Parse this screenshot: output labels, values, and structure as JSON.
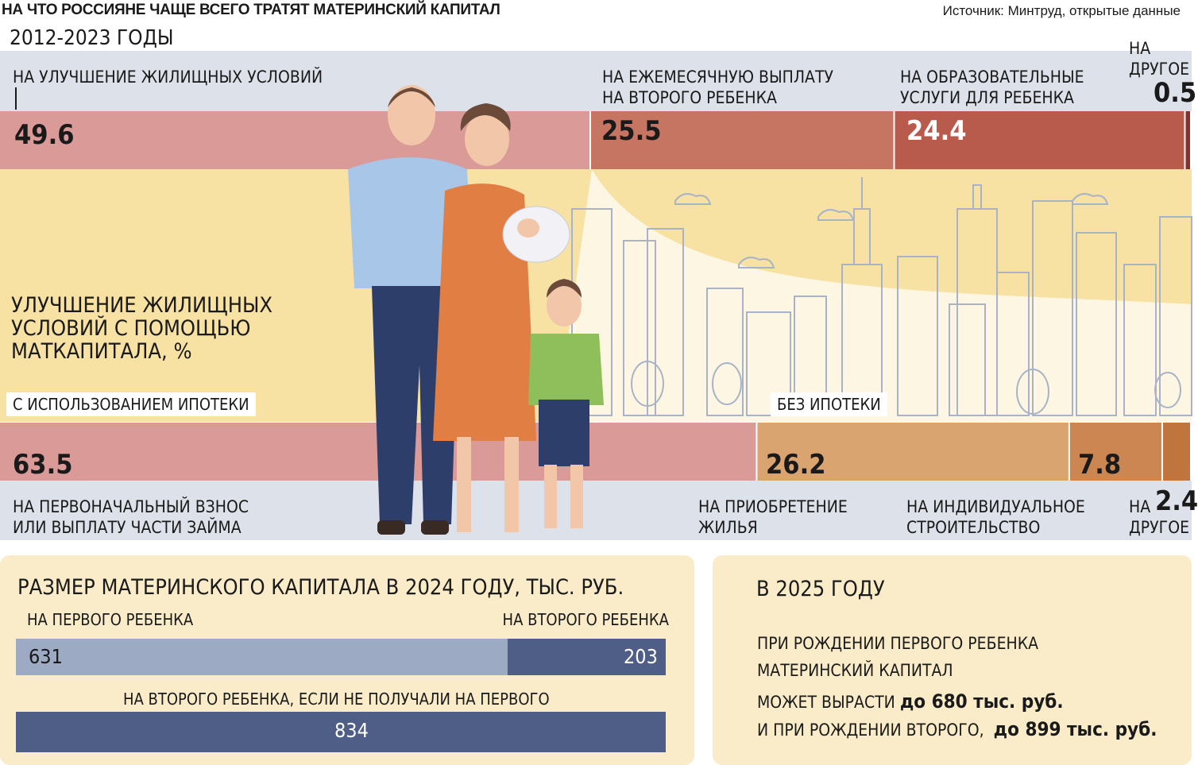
{
  "header": {
    "title": "НА ЧТО РОССИЯНЕ  ЧАЩЕ ВСЕГО ТРАТЯТ МАТЕРИНСКИЙ КАПИТАЛ",
    "source": "Источник: Минтруд, открытые данные",
    "period": "2012-2023 ГОДЫ"
  },
  "chart_data": [
    {
      "type": "bar",
      "orientation": "horizontal-stacked",
      "unit": "%",
      "categories": [
        "НА УЛУЧШЕНИЕ ЖИЛИЩНЫХ УСЛОВИЙ",
        "НА ЕЖЕМЕСЯЧНУЮ ВЫПЛАТУ НА ВТОРОГО РЕБЕНКА",
        "НА ОБРАЗОВАТЕЛЬНЫЕ УСЛУГИ ДЛЯ РЕБЕНКА",
        "НА ДРУГОЕ"
      ],
      "values": [
        49.6,
        25.5,
        24.4,
        0.5
      ],
      "colors": [
        "#d99a98",
        "#c77563",
        "#b85a4c",
        "#8a2f2a"
      ]
    },
    {
      "type": "bar",
      "orientation": "horizontal-stacked",
      "title": "УЛУЧШЕНИЕ ЖИЛИЩНЫХ УСЛОВИЙ С ПОМОЩЬЮ МАТКАПИТАЛА, %",
      "unit": "%",
      "categories": [
        "НА ПЕРВОНАЧАЛЬНЫЙ ВЗНОС ИЛИ ВЫПЛАТУ ЧАСТИ ЗАЙМА",
        "НА ПРИОБРЕТЕНИЕ ЖИЛЬЯ",
        "НА ИНДИВИДУАЛЬНОЕ СТРОИТЕЛЬСТВО",
        "НА ДРУГОЕ"
      ],
      "values": [
        63.5,
        26.2,
        7.8,
        2.4
      ],
      "groups": [
        "С ИСПОЛЬЗОВАНИЕМ ИПОТЕКИ",
        "БЕЗ ИПОТЕКИ"
      ],
      "colors": [
        "#d99a98",
        "#d9a46f",
        "#cb8652",
        "#c0743e"
      ]
    },
    {
      "type": "bar",
      "orientation": "horizontal",
      "title": "РАЗМЕР МАТЕРИНСКОГО КАПИТАЛА В 2024 ГОДУ, ТЫС. РУБ.",
      "categories": [
        "НА ПЕРВОГО РЕБЕНКА",
        "НА ВТОРОГО РЕБЕНКА",
        "НА ВТОРОГО РЕБЕНКА, ЕСЛИ НЕ ПОЛУЧАЛИ НА ПЕРВОГО"
      ],
      "values": [
        631,
        203,
        834
      ],
      "colors": [
        "#9caac4",
        "#4e5e86",
        "#4e5e86"
      ]
    }
  ],
  "top_labels": {
    "housing": "НА УЛУЧШЕНИЕ ЖИЛИЩНЫХ УСЛОВИЙ",
    "monthly": [
      "НА ЕЖЕМЕСЯЧНУЮ ВЫПЛАТУ",
      "НА ВТОРОГО РЕБЕНКА"
    ],
    "education": [
      "НА ОБРАЗОВАТЕЛЬНЫЕ",
      "УСЛУГИ ДЛЯ РЕБЕНКА"
    ],
    "other": [
      "НА",
      "ДРУГОЕ"
    ],
    "v_housing": "49.6",
    "v_monthly": "25.5",
    "v_education": "24.4",
    "v_other": "0.5"
  },
  "middle": {
    "title": [
      "УЛУЧШЕНИЕ ЖИЛИЩНЫХ",
      "УСЛОВИЙ С ПОМОЩЬЮ",
      "МАТКАПИТАЛА, %"
    ],
    "tag_mortgage": "С ИСПОЛЬЗОВАНИЕМ ИПОТЕКИ",
    "tag_no_mortgage": "БЕЗ ИПОТЕКИ"
  },
  "bottom_labels": {
    "downpayment": [
      "НА ПЕРВОНАЧАЛЬНЫЙ ВЗНОС",
      "ИЛИ ВЫПЛАТУ ЧАСТИ ЗАЙМА"
    ],
    "purchase": [
      "НА ПРИОБРЕТЕНИЕ",
      "ЖИЛЬЯ"
    ],
    "construction": [
      "НА ИНДИВИДУАЛЬНОЕ",
      "СТРОИТЕЛЬСТВО"
    ],
    "other": [
      "НА",
      "ДРУГОЕ"
    ],
    "v_downpayment": "63.5",
    "v_purchase": "26.2",
    "v_construction": "7.8",
    "v_other": "2.4"
  },
  "panel_2024": {
    "title": "РАЗМЕР МАТЕРИНСКОГО КАПИТАЛА В 2024 ГОДУ, ТЫС. РУБ.",
    "first_label": "НА ПЕРВОГО РЕБЕНКА",
    "second_label": "НА ВТОРОГО РЕБЕНКА",
    "first_value": "631",
    "second_value": "203",
    "alt_label": "НА ВТОРОГО РЕБЕНКА, ЕСЛИ НЕ ПОЛУЧАЛИ НА ПЕРВОГО",
    "alt_value": "834"
  },
  "panel_2025": {
    "title": "В 2025 ГОДУ",
    "line1": "ПРИ РОЖДЕНИИ ПЕРВОГО РЕБЕНКА",
    "line2": "МАТЕРИНСКИЙ КАПИТАЛ",
    "line3_text": "МОЖЕТ ВЫРАСТИ",
    "line3_bold": "до 680 тыс. руб.",
    "line4_text": "И ПРИ РОЖДЕНИИ ВТОРОГО,",
    "line4_bold": "до 899 тыс. руб."
  }
}
